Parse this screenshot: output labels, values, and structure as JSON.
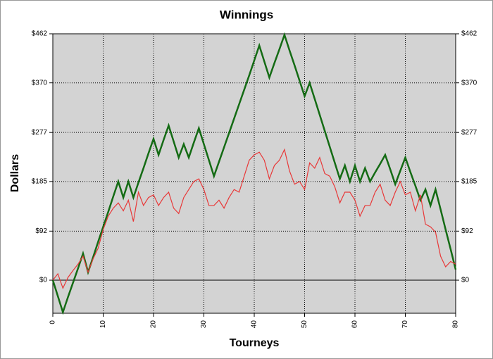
{
  "chart_data": {
    "type": "line",
    "title": "Winnings",
    "x_label": "Tourneys",
    "y_label": "Dollars",
    "x": [
      0,
      1,
      2,
      3,
      4,
      5,
      6,
      7,
      8,
      9,
      10,
      11,
      12,
      13,
      14,
      15,
      16,
      17,
      18,
      19,
      20,
      21,
      22,
      23,
      24,
      25,
      26,
      27,
      28,
      29,
      30,
      31,
      32,
      33,
      34,
      35,
      36,
      37,
      38,
      39,
      40,
      41,
      42,
      43,
      44,
      45,
      46,
      47,
      48,
      49,
      50,
      51,
      52,
      53,
      54,
      55,
      56,
      57,
      58,
      59,
      60,
      61,
      62,
      63,
      64,
      65,
      66,
      67,
      68,
      69,
      70,
      71,
      72,
      73,
      74,
      75,
      76,
      77,
      78,
      79,
      80
    ],
    "series": [
      {
        "color": "#146b14",
        "values": [
          0,
          -30,
          -60,
          -32,
          -5,
          22,
          50,
          15,
          43,
          72,
          100,
          128,
          157,
          185,
          155,
          185,
          155,
          183,
          210,
          238,
          265,
          235,
          263,
          290,
          260,
          230,
          255,
          230,
          258,
          285,
          255,
          225,
          195,
          222,
          249,
          276,
          303,
          330,
          357,
          384,
          412,
          440,
          410,
          380,
          407,
          433,
          460,
          431,
          403,
          374,
          345,
          370,
          340,
          310,
          280,
          250,
          220,
          190,
          215,
          185,
          215,
          185,
          210,
          185,
          202,
          218,
          235,
          208,
          180,
          205,
          230,
          203,
          177,
          150,
          170,
          140,
          170,
          133,
          95,
          58,
          20
        ]
      },
      {
        "color": "#e83838",
        "values": [
          0,
          12,
          -15,
          5,
          18,
          30,
          45,
          15,
          40,
          60,
          95,
          120,
          135,
          145,
          130,
          150,
          110,
          165,
          140,
          155,
          160,
          140,
          155,
          165,
          135,
          125,
          155,
          170,
          185,
          190,
          170,
          140,
          140,
          150,
          135,
          155,
          170,
          165,
          195,
          225,
          235,
          240,
          225,
          190,
          215,
          225,
          245,
          205,
          180,
          185,
          170,
          220,
          210,
          230,
          200,
          195,
          175,
          145,
          165,
          165,
          150,
          120,
          140,
          140,
          165,
          180,
          150,
          140,
          165,
          185,
          160,
          165,
          130,
          160,
          105,
          100,
          90,
          45,
          25,
          35,
          30
        ]
      }
    ],
    "xlim": [
      0,
      80
    ],
    "xticks": [
      0,
      10,
      20,
      30,
      40,
      50,
      60,
      70,
      80
    ],
    "ylim": [
      -62,
      462
    ],
    "yticks": [
      {
        "value": 0,
        "label": "$0"
      },
      {
        "value": 92,
        "label": "$92"
      },
      {
        "value": 185,
        "label": "$185"
      },
      {
        "value": 277,
        "label": "$277"
      },
      {
        "value": 370,
        "label": "$370"
      },
      {
        "value": 462,
        "label": "$462"
      }
    ],
    "y2lim": [
      -62,
      462
    ],
    "y2ticks": [
      {
        "value": 0,
        "label": "$0"
      },
      {
        "value": 92,
        "label": "$92"
      },
      {
        "value": 185,
        "label": "$185"
      },
      {
        "value": 277,
        "label": "$277"
      },
      {
        "value": 370,
        "label": "$370"
      },
      {
        "value": 462,
        "label": "$462"
      }
    ],
    "grid": true
  }
}
